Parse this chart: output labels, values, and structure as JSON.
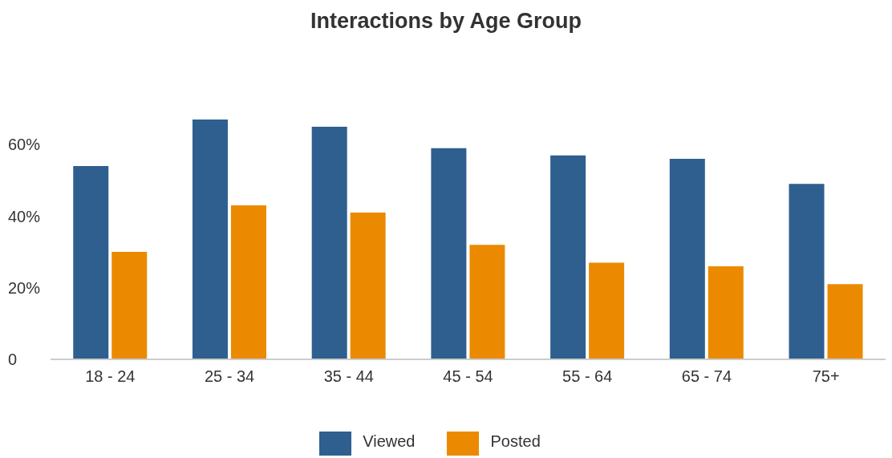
{
  "chart_data": {
    "type": "bar",
    "title": "Interactions by Age Group",
    "categories": [
      "18 - 24",
      "25 - 34",
      "35 - 44",
      "45 - 54",
      "55 - 64",
      "65 - 74",
      "75+"
    ],
    "series": [
      {
        "name": "Viewed",
        "color": "#2e5f8f",
        "values": [
          54,
          67,
          65,
          59,
          57,
          56,
          49
        ]
      },
      {
        "name": "Posted",
        "color": "#eb8a00",
        "values": [
          30,
          43,
          41,
          32,
          27,
          26,
          21
        ]
      }
    ],
    "ylim": [
      0,
      67
    ],
    "yticks": [
      0,
      {
        "value": 20,
        "label": "20%"
      },
      {
        "value": 40,
        "label": "40%"
      },
      {
        "value": 60,
        "label": "60%"
      }
    ],
    "grid": false,
    "legend": "bottom"
  }
}
